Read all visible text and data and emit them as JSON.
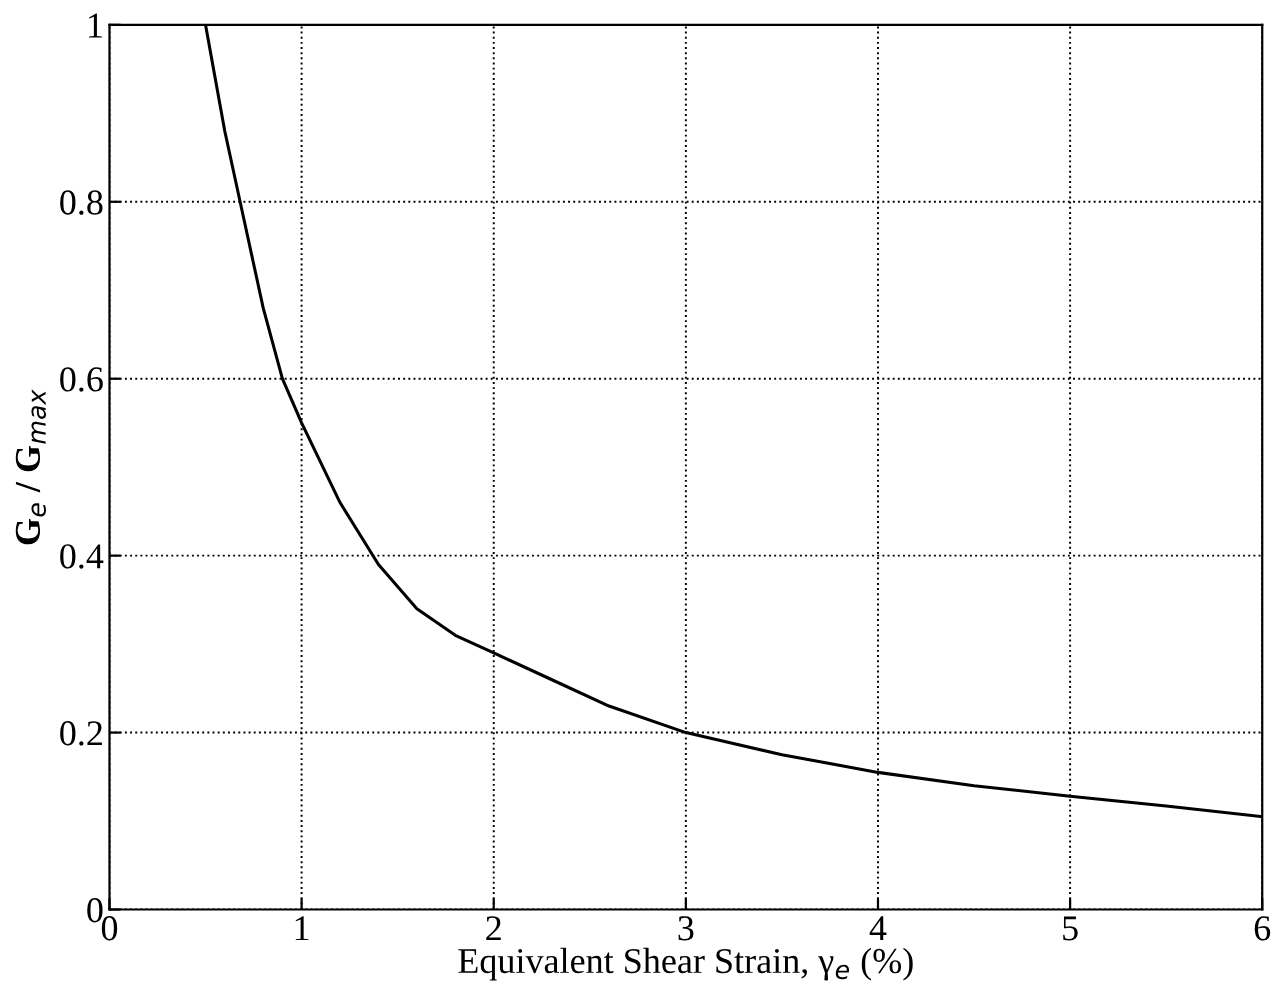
{
  "chart_data": {
    "type": "line",
    "xlabel": "Equivalent Shear Strain, γ$_{e}$ (%)",
    "ylabel": "G$_{e}$ / G$_{max}$",
    "x": [
      0.5,
      0.55,
      0.6,
      0.7,
      0.8,
      0.9,
      1.0,
      1.2,
      1.4,
      1.6,
      1.8,
      2.0,
      2.3,
      2.6,
      3.0,
      3.5,
      4.0,
      4.5,
      5.0,
      5.5,
      6.0
    ],
    "series": [
      {
        "color": "#000000",
        "values": [
          1.0,
          0.94,
          0.88,
          0.78,
          0.68,
          0.6,
          0.55,
          0.46,
          0.39,
          0.34,
          0.31,
          0.29,
          0.26,
          0.23,
          0.2,
          0.175,
          0.155,
          0.14,
          0.128,
          0.117,
          0.105
        ]
      }
    ],
    "xlim": [
      0,
      6
    ],
    "ylim": [
      0,
      1
    ],
    "xticks": [
      0,
      1,
      2,
      3,
      4,
      5,
      6
    ],
    "yticks": [
      0,
      0.2,
      0.4,
      0.6,
      0.8,
      1
    ],
    "grid": true,
    "line_style": "solid",
    "marker": "none"
  }
}
